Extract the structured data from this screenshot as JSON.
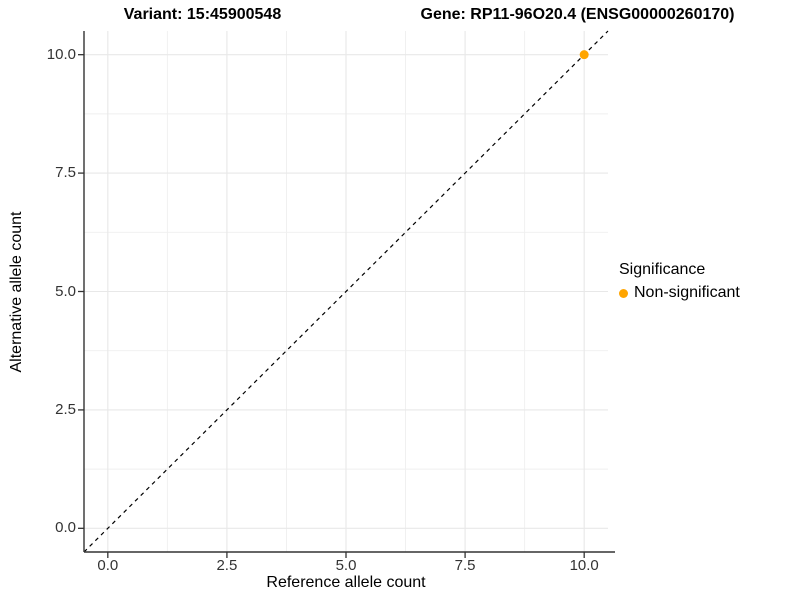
{
  "titles": {
    "variant": "Variant: 15:45900548",
    "gene": "Gene: RP11-96O20.4 (ENSG00000260170)"
  },
  "axes": {
    "x": {
      "label": "Reference allele count",
      "tick_labels": [
        "0.0",
        "2.5",
        "5.0",
        "7.5",
        "10.0"
      ]
    },
    "y": {
      "label": "Alternative allele count",
      "tick_labels": [
        "0.0",
        "2.5",
        "5.0",
        "7.5",
        "10.0"
      ]
    }
  },
  "legend": {
    "title": "Significance",
    "items": [
      {
        "label": "Non-significant",
        "color": "#FFA500"
      }
    ]
  },
  "chart_data": {
    "type": "scatter",
    "title": "Variant: 15:45900548 | Gene: RP11-96O20.4 (ENSG00000260170)",
    "xlabel": "Reference allele count",
    "ylabel": "Alternative allele count",
    "xlim": [
      -0.5,
      10.5
    ],
    "ylim": [
      -0.5,
      10.5
    ],
    "x_ticks": [
      0,
      2.5,
      5,
      7.5,
      10
    ],
    "y_ticks": [
      0,
      2.5,
      5,
      7.5,
      10
    ],
    "minor_ticks": [
      1.25,
      3.75,
      6.25,
      8.75
    ],
    "grid": "major+minor",
    "legend_position": "right",
    "points": [
      {
        "x": 10,
        "y": 10,
        "series": "Non-significant",
        "color": "#FFA500"
      }
    ],
    "reference_line": {
      "type": "identity",
      "style": "dashed",
      "color": "#000000",
      "from": [
        -0.5,
        -0.5
      ],
      "to": [
        10.5,
        10.5
      ]
    },
    "colors": {
      "grid_major": "#e8e8e8",
      "grid_minor": "#efefef",
      "axis_line": "#333333",
      "tick_mark": "#333333"
    }
  }
}
